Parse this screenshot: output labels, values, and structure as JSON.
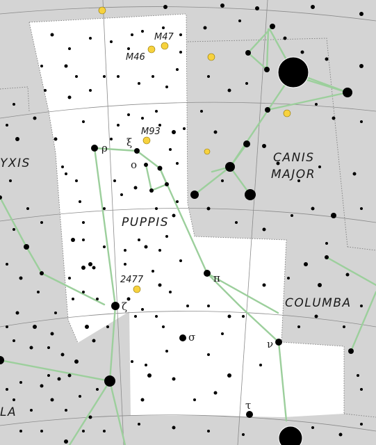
{
  "map": {
    "constellations": [
      {
        "id": "puppis",
        "label": "PUPPIS"
      },
      {
        "id": "canis-major",
        "label": "CANIS MAJOR"
      },
      {
        "id": "columba",
        "label": "COLUMBA"
      },
      {
        "id": "pyxis",
        "label": "YXIS"
      },
      {
        "id": "vela",
        "label": "LA"
      }
    ],
    "deep_sky_objects": [
      {
        "id": "m47",
        "label": "M47"
      },
      {
        "id": "m46",
        "label": "M46"
      },
      {
        "id": "m93",
        "label": "M93"
      },
      {
        "id": "ngc2477",
        "label": "2477"
      }
    ],
    "star_labels": [
      {
        "id": "rho",
        "label": "ρ"
      },
      {
        "id": "xi",
        "label": "ξ"
      },
      {
        "id": "omicron",
        "label": "ο"
      },
      {
        "id": "pi",
        "label": "π"
      },
      {
        "id": "zeta",
        "label": "ζ"
      },
      {
        "id": "sigma",
        "label": "σ"
      },
      {
        "id": "nu",
        "label": "ν"
      },
      {
        "id": "tau",
        "label": "τ"
      }
    ],
    "colors": {
      "background": "#d4d4d4",
      "constellation_region": "#ffffff",
      "star": "#000000",
      "stick_figure": "#9ccf9c",
      "deep_sky_object": "#f7d23e",
      "grid": "#8a8a8a",
      "boundary": "#7a7a7a"
    }
  }
}
